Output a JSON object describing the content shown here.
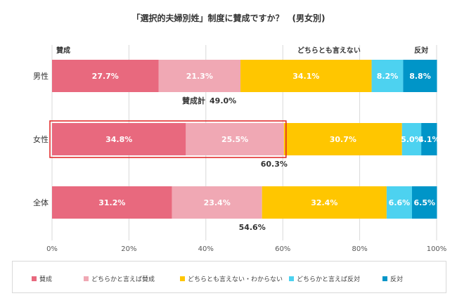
{
  "chart_data": {
    "type": "bar",
    "orientation": "horizontal-stacked",
    "title": "「選択的夫婦別姓」制度に賛成ですか？　(男女別)",
    "categories": [
      "男性",
      "女性",
      "全体"
    ],
    "series": [
      {
        "name": "賛成",
        "color": "#E8697E",
        "values": [
          27.7,
          34.8,
          31.2
        ]
      },
      {
        "name": "どちらかと言えば賛成",
        "color": "#F0A8B4",
        "values": [
          21.3,
          25.5,
          23.4
        ]
      },
      {
        "name": "どちらとも言えない・わからない",
        "color": "#FFC600",
        "values": [
          34.1,
          30.7,
          32.4
        ]
      },
      {
        "name": "どちらかと言えば反対",
        "color": "#4DD2F0",
        "values": [
          8.2,
          5.0,
          6.6
        ]
      },
      {
        "name": "反対",
        "color": "#0095C8",
        "values": [
          8.8,
          4.1,
          6.5
        ]
      }
    ],
    "value_labels": [
      [
        "27.7%",
        "21.3%",
        "34.1%",
        "8.2%",
        "8.8%"
      ],
      [
        "34.8%",
        "25.5%",
        "30.7%",
        "5.0%",
        "4.1%"
      ],
      [
        "31.2%",
        "23.4%",
        "32.4%",
        "6.6%",
        "6.5%"
      ]
    ],
    "totals": [
      {
        "label": "賛成計",
        "value": "49.0%"
      },
      {
        "label": "",
        "value": "60.3%"
      },
      {
        "label": "",
        "value": "54.6%"
      }
    ],
    "highlight_category": "女性",
    "highlight_color": "#E02020",
    "group_labels": [
      "賛成",
      "どちらとも言えない",
      "反対"
    ],
    "xlim": [
      0,
      100
    ],
    "xticks": [
      "0%",
      "20%",
      "40%",
      "60%",
      "80%",
      "100%"
    ],
    "grid": true,
    "legend_position": "bottom"
  }
}
